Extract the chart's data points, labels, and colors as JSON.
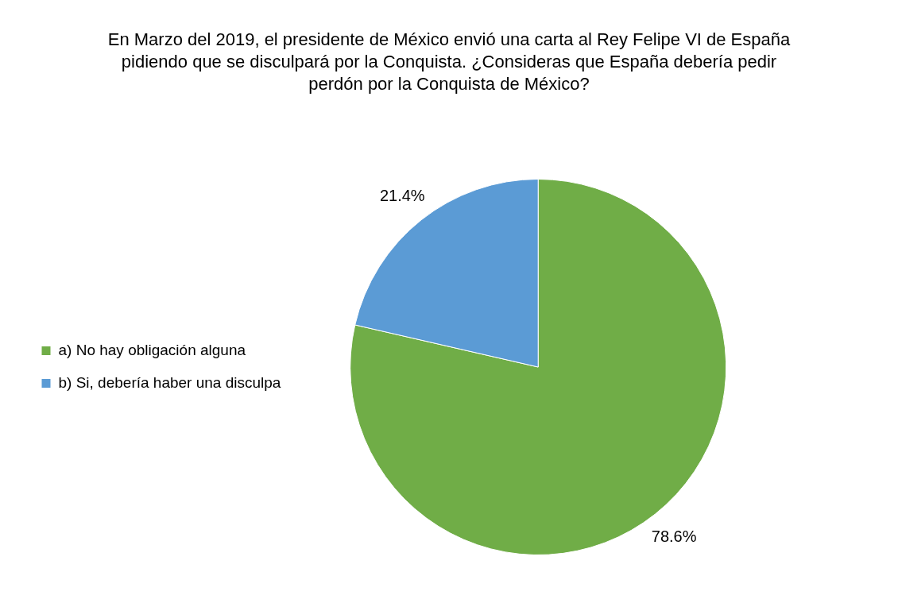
{
  "chart_data": {
    "type": "pie",
    "title": "En Marzo del 2019, el presidente de México envió una carta al Rey Felipe VI de España pidiendo que se disculpará por la Conquista. ¿Consideras que España debería pedir perdón por la Conquista de México?",
    "categories": [
      "a) No hay obligación alguna",
      "b) Si, debería haber una disculpa"
    ],
    "values": [
      78.6,
      21.4
    ],
    "colors": [
      "#70ad47",
      "#5b9bd5"
    ],
    "value_labels": [
      "78.6%",
      "21.4%"
    ],
    "legend": "left"
  }
}
